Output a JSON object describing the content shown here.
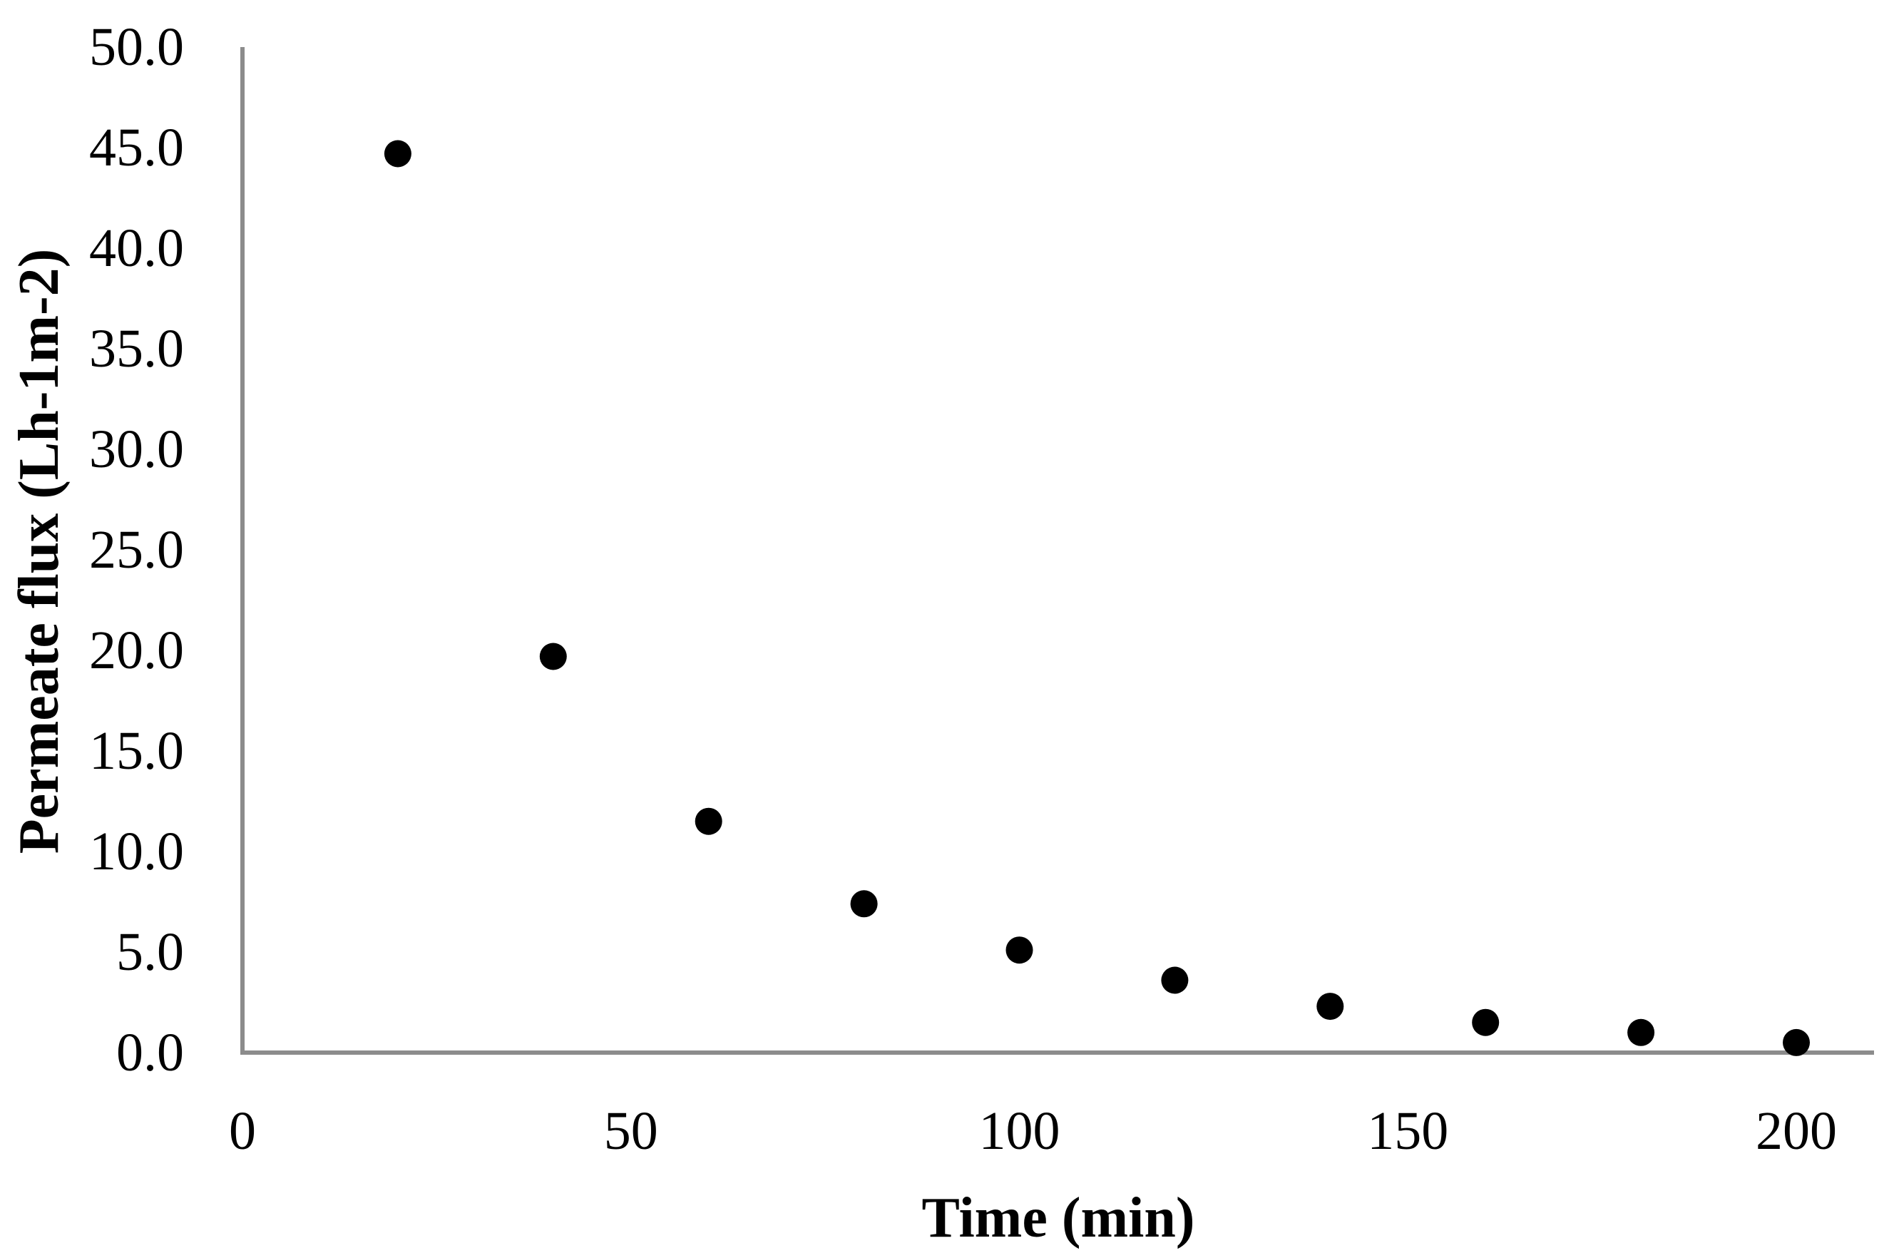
{
  "figure": {
    "background_color": "#ffffff",
    "axis_line_color": "#8c8c8c",
    "text_color": "#000000"
  },
  "chart_data": {
    "type": "scatter",
    "title": "",
    "xlabel": "Time (min)",
    "ylabel": "Permeate flux (Lh-1m-2)",
    "series": [
      {
        "name": "Permeate flux",
        "x": [
          20,
          40,
          60,
          80,
          100,
          120,
          140,
          160,
          180,
          200
        ],
        "y": [
          44.7,
          19.7,
          11.5,
          7.4,
          5.1,
          3.6,
          2.3,
          1.5,
          1.0,
          0.5
        ]
      }
    ],
    "xlim": [
      0,
      210
    ],
    "ylim": [
      0,
      50
    ],
    "x_tick_labels": [
      "0",
      "50",
      "100",
      "150",
      "200"
    ],
    "y_tick_labels": [
      "0.0",
      "5.0",
      "10.0",
      "15.0",
      "20.0",
      "25.0",
      "30.0",
      "35.0",
      "40.0",
      "45.0",
      "50.0"
    ],
    "grid": false,
    "legend_position": "none",
    "marker": {
      "shape": "circle",
      "color": "#000000",
      "radius_px": 19
    }
  }
}
